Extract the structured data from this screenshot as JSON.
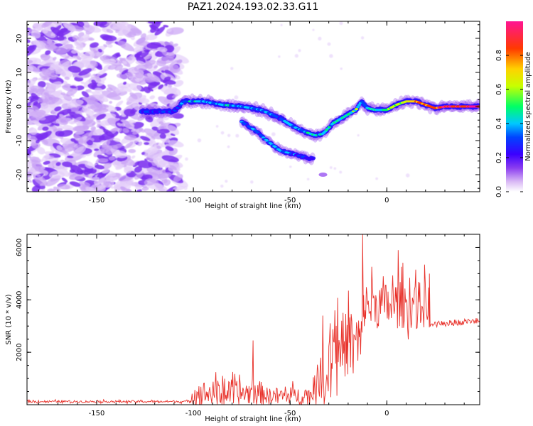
{
  "figure_title": "PAZ1.2024.193.02.33.G11",
  "colors": {
    "snr_line": "#e8312a",
    "speckle": "#8a3cf0",
    "colormap": [
      "#ffffff",
      "#d9b8f5",
      "#8a3cf0",
      "#3b00ff",
      "#0044ff",
      "#00c8ff",
      "#00ff66",
      "#c8ff00",
      "#ffd200",
      "#ff3a00",
      "#ff1493"
    ]
  },
  "chart_data": [
    {
      "type": "heatmap",
      "title": "PAZ1.2024.193.02.33.G11",
      "xlabel": "Height of straight line (km)",
      "ylabel": "Frequency (Hz)",
      "xlim": [
        -186,
        48
      ],
      "ylim": [
        -25,
        25
      ],
      "xticks": [
        -150,
        -100,
        -50,
        0
      ],
      "yticks": [
        -20,
        -10,
        0,
        10,
        20
      ],
      "colorbar": {
        "label": "Normalized spectral amplitude",
        "range": [
          0.0,
          1.0
        ],
        "ticks": [
          0.0,
          0.2,
          0.4,
          0.6,
          0.8
        ]
      },
      "noise_region_x": [
        -186,
        -107
      ],
      "main_ridge": {
        "x": [
          -127,
          -110,
          -105,
          -95,
          -85,
          -75,
          -65,
          -55,
          -48,
          -42,
          -37,
          -33,
          -28,
          -22,
          -16,
          -13,
          -10,
          -6,
          0,
          5,
          10,
          15,
          20,
          25,
          30,
          48
        ],
        "y": [
          -1.5,
          -1.5,
          1.5,
          1.5,
          0.5,
          0,
          -1.0,
          -3.5,
          -6.0,
          -7.5,
          -8.5,
          -8.0,
          -5.0,
          -3.0,
          -1.0,
          1.5,
          -0.5,
          -1.0,
          -1.0,
          0.5,
          1.5,
          1.5,
          0.5,
          -0.5,
          0.0,
          0.0
        ],
        "amplitude": [
          0.35,
          0.35,
          0.45,
          0.5,
          0.5,
          0.45,
          0.45,
          0.4,
          0.45,
          0.5,
          0.55,
          0.5,
          0.5,
          0.55,
          0.6,
          0.4,
          0.5,
          0.55,
          0.6,
          0.65,
          0.7,
          0.8,
          0.85,
          0.9,
          0.95,
          0.95
        ]
      },
      "secondary_ridge": {
        "x": [
          -75,
          -68,
          -62,
          -55,
          -48,
          -42,
          -38
        ],
        "y": [
          -4.5,
          -7.0,
          -10.0,
          -13.0,
          -14.0,
          -15.0,
          -15.5
        ],
        "amplitude": [
          0.4,
          0.4,
          0.45,
          0.45,
          0.4,
          0.35,
          0.3
        ]
      },
      "faint_tail": {
        "x": [
          -34,
          -32
        ],
        "y": [
          -19.5,
          -20.5
        ]
      }
    },
    {
      "type": "line",
      "xlabel": "Height of straight line (km)",
      "ylabel": "SNR (10 * v/v)",
      "xlim": [
        -186,
        48
      ],
      "ylim": [
        0,
        6500
      ],
      "xticks": [
        -150,
        -100,
        -50,
        0
      ],
      "yticks": [
        2000,
        4000,
        6000
      ],
      "series": [
        {
          "segments": [
            {
              "x": [
                -186,
                -101
              ],
              "baseline": 120,
              "jitter": 60
            },
            {
              "x": [
                -101,
                -63
              ],
              "baseline": 450,
              "jitter": 650
            },
            {
              "x": [
                -63,
                -38
              ],
              "baseline": 350,
              "jitter": 450
            },
            {
              "x": [
                -38,
                -30
              ],
              "baseline": 900,
              "jitter": 900
            },
            {
              "x": [
                -30,
                -12
              ],
              "baseline": 2300,
              "jitter": 1800
            },
            {
              "x": [
                -12,
                22
              ],
              "baseline": 3800,
              "jitter": 1300
            },
            {
              "x": [
                22,
                48
              ],
              "baseline": 3050,
              "jitter": 120
            }
          ],
          "spikes": [
            {
              "x": -12.5,
              "y": 6500
            },
            {
              "x": 6,
              "y": 5900
            },
            {
              "x": -69,
              "y": 2450
            },
            {
              "x": -85,
              "y": 1100
            },
            {
              "x": -27,
              "y": 3600
            },
            {
              "x": -33,
              "y": 3400
            },
            {
              "x": -20,
              "y": 4350
            },
            {
              "x": -2,
              "y": 4900
            },
            {
              "x": 15,
              "y": 5150
            },
            {
              "x": 22,
              "y": 5000
            }
          ]
        }
      ]
    }
  ]
}
